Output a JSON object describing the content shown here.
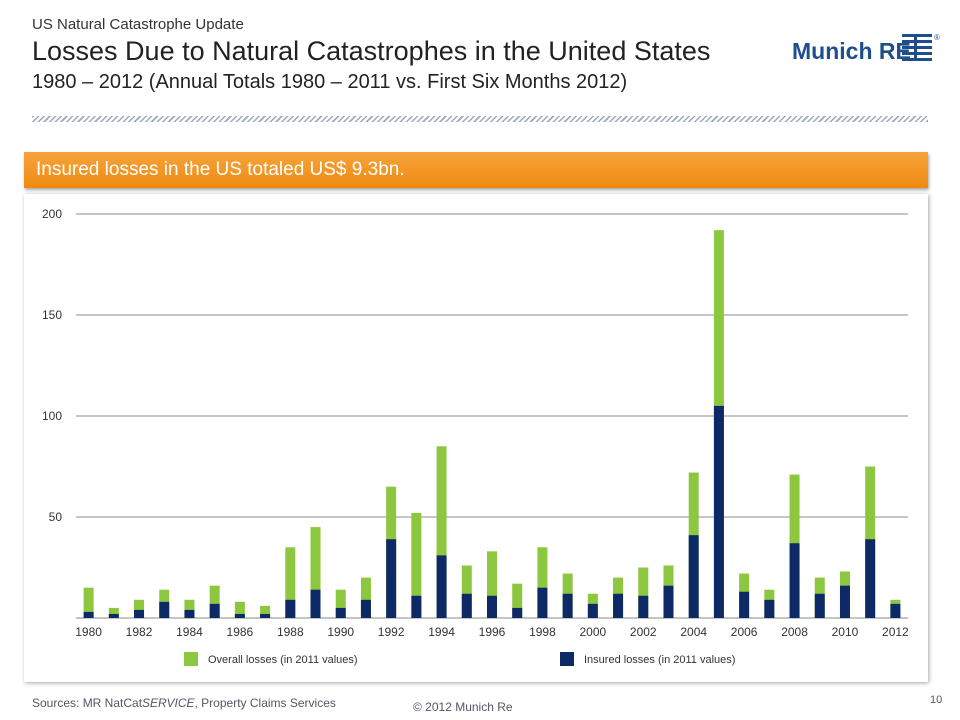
{
  "header": {
    "kicker": "US Natural Catastrophe Update",
    "title": "Losses Due to Natural Catastrophes in the United States",
    "subtitle": "1980 – 2012 (Annual Totals 1980 – 2011 vs. First Six Months 2012)"
  },
  "logo": {
    "text": "Munich RE",
    "registered": "®",
    "color": "#1f4e8c"
  },
  "banner": {
    "text": "Insured losses in the US totaled US$ 9.3bn.",
    "color": "#f29420"
  },
  "chart_data": {
    "type": "bar",
    "stacked": false,
    "overlapping": true,
    "categories": [
      "1980",
      "1981",
      "1982",
      "1983",
      "1984",
      "1985",
      "1986",
      "1987",
      "1988",
      "1989",
      "1990",
      "1991",
      "1992",
      "1993",
      "1994",
      "1995",
      "1996",
      "1997",
      "1998",
      "1999",
      "2000",
      "2001",
      "2002",
      "2003",
      "2004",
      "2005",
      "2006",
      "2007",
      "2008",
      "2009",
      "2010",
      "2011",
      "2012"
    ],
    "tick_labels": [
      "1980",
      "1982",
      "1984",
      "1986",
      "1988",
      "1990",
      "1992",
      "1994",
      "1996",
      "1998",
      "2000",
      "2002",
      "2004",
      "2006",
      "2008",
      "2010",
      "2012"
    ],
    "series": [
      {
        "name": "Overall losses (in 2011 values)",
        "color": "#8dc63f",
        "values": [
          15,
          5,
          9,
          14,
          9,
          16,
          8,
          6,
          35,
          45,
          14,
          20,
          65,
          52,
          85,
          26,
          33,
          17,
          35,
          22,
          12,
          20,
          25,
          26,
          72,
          192,
          22,
          14,
          71,
          20,
          23,
          75,
          9
        ]
      },
      {
        "name": "Insured losses (in 2011 values)",
        "color": "#0d2a66",
        "values": [
          3,
          2,
          4,
          8,
          4,
          7,
          2,
          2,
          9,
          14,
          5,
          9,
          39,
          11,
          31,
          12,
          11,
          5,
          15,
          12,
          7,
          12,
          11,
          16,
          41,
          105,
          13,
          9,
          37,
          12,
          16,
          39,
          7
        ]
      }
    ],
    "yticks": [
      50,
      100,
      150,
      200
    ],
    "ylim": [
      0,
      200
    ],
    "grid": true,
    "legend_placement": "bottom"
  },
  "footer": {
    "sources_prefix": "Sources: MR NatCat",
    "sources_italic": "SERVICE",
    "sources_suffix": ", Property Claims Services",
    "copyright": "© 2012 Munich Re",
    "page": "10"
  }
}
